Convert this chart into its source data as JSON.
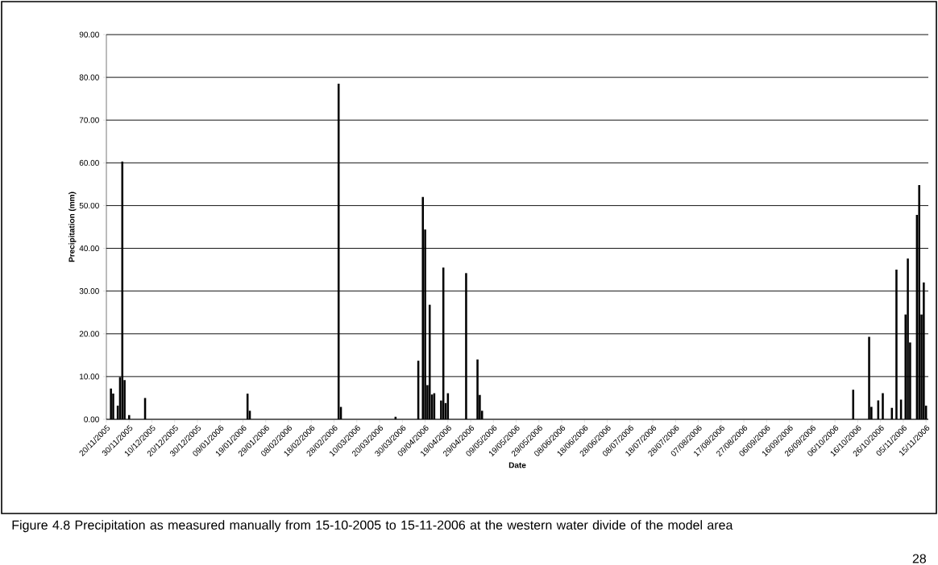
{
  "chart_data": {
    "type": "bar",
    "xlabel": "Date",
    "ylabel": "Precipitation (mm)",
    "x": [
      "2005-11-22",
      "2005-11-23",
      "2005-11-25",
      "2005-11-26",
      "2005-11-27",
      "2005-11-28",
      "2005-11-30",
      "2005-12-07",
      "2006-01-21",
      "2006-01-22",
      "2006-03-02",
      "2006-03-03",
      "2006-03-27",
      "2006-04-06",
      "2006-04-08",
      "2006-04-09",
      "2006-04-10",
      "2006-04-11",
      "2006-04-12",
      "2006-04-13",
      "2006-04-16",
      "2006-04-17",
      "2006-04-18",
      "2006-04-19",
      "2006-04-27",
      "2006-05-02",
      "2006-05-03",
      "2006-05-04",
      "2006-10-14",
      "2006-10-21",
      "2006-10-22",
      "2006-10-25",
      "2006-10-27",
      "2006-10-31",
      "2006-11-02",
      "2006-11-04",
      "2006-11-06",
      "2006-11-07",
      "2006-11-08",
      "2006-11-11",
      "2006-11-12",
      "2006-11-13",
      "2006-11-14",
      "2006-11-15"
    ],
    "values": [
      7.2,
      6.0,
      3.2,
      9.9,
      60.3,
      9.2,
      1.0,
      5.0,
      6.0,
      2.0,
      78.5,
      2.9,
      0.6,
      13.7,
      52.0,
      44.4,
      8.0,
      26.8,
      5.8,
      6.1,
      4.4,
      35.5,
      3.8,
      6.1,
      34.2,
      14.0,
      5.7,
      2.0,
      6.9,
      19.3,
      2.9,
      4.4,
      6.1,
      2.7,
      35.0,
      4.6,
      24.5,
      37.6,
      18.0,
      47.8,
      54.8,
      24.5,
      32.0,
      3.2
    ],
    "color": "#000000",
    "xlim": [
      "2005-11-20",
      "2006-11-16"
    ],
    "xticks": [
      {
        "value": "2005-11-20",
        "label": "20/11/2005"
      },
      {
        "value": "2005-11-30",
        "label": "30/11/2005"
      },
      {
        "value": "2005-12-10",
        "label": "10/12/2005"
      },
      {
        "value": "2005-12-20",
        "label": "20/12/2005"
      },
      {
        "value": "2005-12-30",
        "label": "30/12/2005"
      },
      {
        "value": "2006-01-09",
        "label": "09/01/2006"
      },
      {
        "value": "2006-01-19",
        "label": "19/01/2006"
      },
      {
        "value": "2006-01-29",
        "label": "29/01/2006"
      },
      {
        "value": "2006-02-08",
        "label": "08/02/2006"
      },
      {
        "value": "2006-02-18",
        "label": "18/02/2006"
      },
      {
        "value": "2006-02-28",
        "label": "28/02/2006"
      },
      {
        "value": "2006-03-10",
        "label": "10/03/2006"
      },
      {
        "value": "2006-03-20",
        "label": "20/03/2006"
      },
      {
        "value": "2006-03-30",
        "label": "30/03/2006"
      },
      {
        "value": "2006-04-09",
        "label": "09/04/2006"
      },
      {
        "value": "2006-04-19",
        "label": "19/04/2006"
      },
      {
        "value": "2006-04-29",
        "label": "29/04/2006"
      },
      {
        "value": "2006-05-09",
        "label": "09/05/2006"
      },
      {
        "value": "2006-05-19",
        "label": "19/05/2006"
      },
      {
        "value": "2006-05-29",
        "label": "29/05/2006"
      },
      {
        "value": "2006-06-08",
        "label": "08/06/2006"
      },
      {
        "value": "2006-06-18",
        "label": "18/06/2006"
      },
      {
        "value": "2006-06-28",
        "label": "28/06/2006"
      },
      {
        "value": "2006-07-08",
        "label": "08/07/2006"
      },
      {
        "value": "2006-07-18",
        "label": "18/07/2006"
      },
      {
        "value": "2006-07-28",
        "label": "28/07/2006"
      },
      {
        "value": "2006-08-07",
        "label": "07/08/2006"
      },
      {
        "value": "2006-08-17",
        "label": "17/08/2006"
      },
      {
        "value": "2006-08-27",
        "label": "27/08/2006"
      },
      {
        "value": "2006-09-06",
        "label": "06/09/2006"
      },
      {
        "value": "2006-09-16",
        "label": "16/09/2006"
      },
      {
        "value": "2006-09-26",
        "label": "26/09/2006"
      },
      {
        "value": "2006-10-06",
        "label": "06/10/2006"
      },
      {
        "value": "2006-10-16",
        "label": "16/10/2006"
      },
      {
        "value": "2006-10-26",
        "label": "26/10/2006"
      },
      {
        "value": "2006-11-05",
        "label": "05/11/2006"
      },
      {
        "value": "2006-11-15",
        "label": "15/11/2006"
      }
    ],
    "ylim": [
      0,
      90
    ],
    "yticks": [
      {
        "value": 0,
        "label": "0.00"
      },
      {
        "value": 10,
        "label": "10.00"
      },
      {
        "value": 20,
        "label": "20.00"
      },
      {
        "value": 30,
        "label": "30.00"
      },
      {
        "value": 40,
        "label": "40.00"
      },
      {
        "value": 50,
        "label": "50.00"
      },
      {
        "value": 60,
        "label": "60.00"
      },
      {
        "value": 70,
        "label": "70.00"
      },
      {
        "value": 80,
        "label": "80.00"
      },
      {
        "value": 90,
        "label": "90.00"
      }
    ],
    "grid": "y",
    "annotations": [
      "Figure 4.8 Precipitation as measured manually from 15-10-2005 to 15-11-2006 at the western water divide of the model area",
      "28"
    ]
  }
}
